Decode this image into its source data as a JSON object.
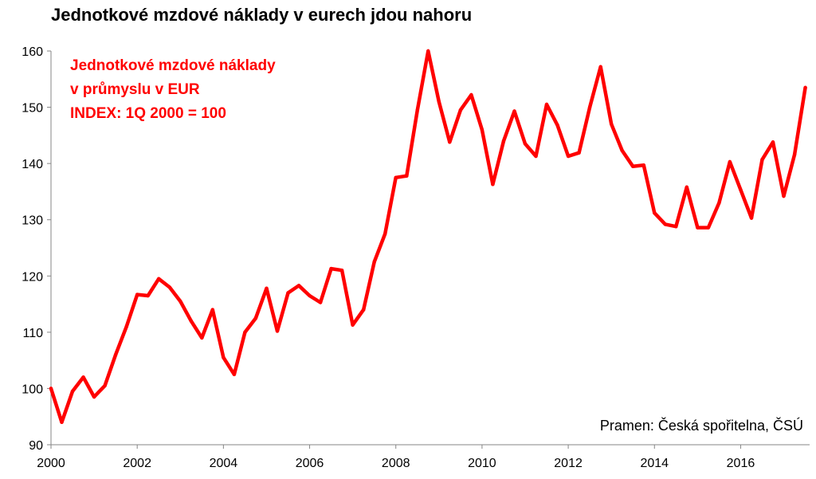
{
  "header": {
    "title": "Jednotkové mzdové náklady v eurech jdou nahoru"
  },
  "chart_data": {
    "type": "line",
    "title": "Jednotkové mzdové náklady v eurech jdou nahoru",
    "xlabel": "",
    "ylabel": "",
    "xlim": [
      2000,
      2017.6
    ],
    "ylim": [
      90,
      160
    ],
    "x_ticks": [
      2000,
      2002,
      2004,
      2006,
      2008,
      2010,
      2012,
      2014,
      2016
    ],
    "y_ticks": [
      90,
      100,
      110,
      120,
      130,
      140,
      150,
      160
    ],
    "grid": false,
    "legend": "none",
    "annotation_lines": [
      "Jednotkové mzdové náklady",
      "v průmyslu v EUR",
      "INDEX: 1Q 2000 = 100"
    ],
    "source": "Pramen: Česká spořitelna, ČSÚ",
    "colors": {
      "series": "#ff0000",
      "annotation": "#ff0000"
    },
    "series": [
      {
        "x": [
          2000.0,
          2000.25,
          2000.5,
          2000.75,
          2001.0,
          2001.25,
          2001.5,
          2001.75,
          2002.0,
          2002.25,
          2002.5,
          2002.75,
          2003.0,
          2003.25,
          2003.5,
          2003.75,
          2004.0,
          2004.25,
          2004.5,
          2004.75,
          2005.0,
          2005.25,
          2005.5,
          2005.75,
          2006.0,
          2006.25,
          2006.5,
          2006.75,
          2007.0,
          2007.25,
          2007.5,
          2007.75,
          2008.0,
          2008.25,
          2008.5,
          2008.75,
          2009.0,
          2009.25,
          2009.5,
          2009.75,
          2010.0,
          2010.25,
          2010.5,
          2010.75,
          2011.0,
          2011.25,
          2011.5,
          2011.75,
          2012.0,
          2012.25,
          2012.5,
          2012.75,
          2013.0,
          2013.25,
          2013.5,
          2013.75,
          2014.0,
          2014.25,
          2014.5,
          2014.75,
          2015.0,
          2015.25,
          2015.5,
          2015.75,
          2016.0,
          2016.25,
          2016.5,
          2016.75,
          2017.0,
          2017.25,
          2017.5
        ],
        "values": [
          100,
          94,
          99.5,
          102,
          98.5,
          100.5,
          106,
          111,
          116.7,
          116.5,
          119.5,
          118,
          115.5,
          112,
          109,
          114,
          105.5,
          102.5,
          110,
          112.5,
          117.8,
          110.2,
          117,
          118.3,
          116.5,
          115.3,
          121.3,
          121,
          111.3,
          114,
          122.5,
          127.5,
          137.5,
          137.8,
          149.5,
          160,
          151,
          143.8,
          149.5,
          152.2,
          146,
          136.3,
          144,
          149.3,
          143.5,
          141.3,
          150.5,
          146.8,
          141.3,
          141.9,
          150,
          157.2,
          147,
          142.3,
          139.5,
          139.7,
          131.2,
          129.2,
          128.8,
          135.8,
          128.6,
          128.6,
          133,
          140.3,
          135.3,
          130.3,
          140.7,
          143.8,
          134.2,
          141.6,
          153.5
        ]
      }
    ]
  }
}
